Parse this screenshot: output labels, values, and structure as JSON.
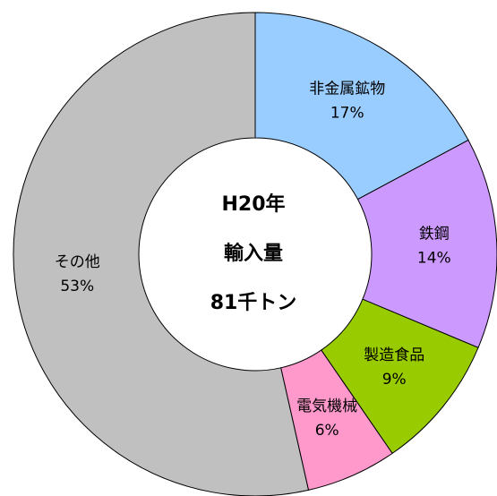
{
  "chart_data": {
    "type": "donut",
    "categories": [
      "非金属鉱物",
      "鉄鋼",
      "製造食品",
      "電気機械",
      "その他"
    ],
    "values": [
      17,
      14,
      9,
      6,
      53
    ],
    "value_labels": [
      "17%",
      "14%",
      "9%",
      "6%",
      "53%"
    ],
    "colors": [
      "#99ccff",
      "#cc99ff",
      "#99cc00",
      "#ff99cc",
      "#c0c0c0"
    ],
    "annotations": [
      "H20年",
      "輸入量",
      "81千トン"
    ]
  }
}
